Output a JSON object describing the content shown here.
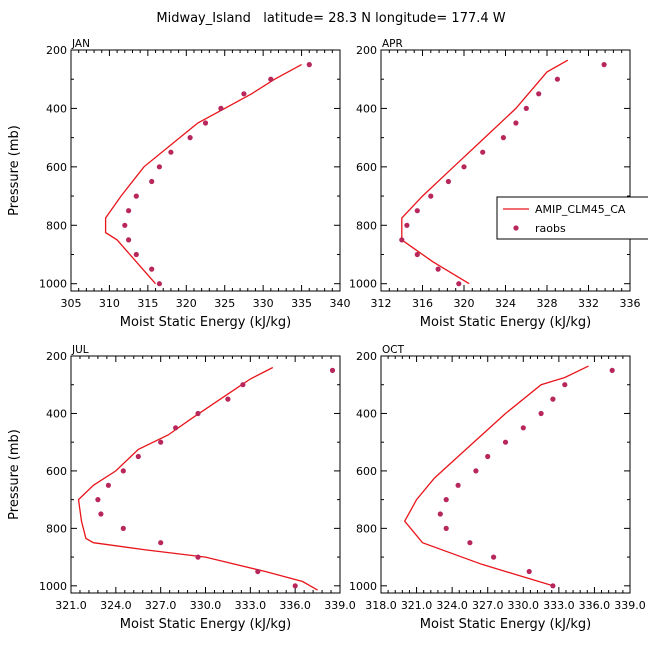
{
  "title": "Midway_Island   latitude= 28.3 N longitude= 177.4 W",
  "colors": {
    "model": "#e8151b",
    "obs": "#b8275c"
  },
  "legend": {
    "model_label": "AMIP_CLM45_CA",
    "obs_label": "raobs",
    "placement": "right of APR panel"
  },
  "chart_data": [
    {
      "type": "line",
      "panel": "JAN",
      "xlabel": "Moist Static Energy (kJ/kg)",
      "ylabel": "Pressure (mb)",
      "xlim": [
        305,
        340
      ],
      "ylim": [
        200,
        1025
      ],
      "y_inverted": true,
      "x_ticks": [
        "305",
        "310",
        "315",
        "320",
        "325",
        "330",
        "335",
        "340"
      ],
      "y_ticks": [
        "200",
        "400",
        "600",
        "800",
        "1000"
      ],
      "series": [
        {
          "name": "AMIP_CLM45_CA",
          "style": "line",
          "x": [
            316.0,
            313.5,
            311.0,
            309.5,
            309.5,
            311.5,
            314.5,
            318.0,
            321.5,
            325.0,
            328.5,
            331.5,
            335.0
          ],
          "y": [
            1000,
            925,
            850,
            825,
            775,
            700,
            600,
            525,
            450,
            400,
            350,
            300,
            250
          ]
        },
        {
          "name": "raobs",
          "style": "dots",
          "x": [
            316.5,
            315.5,
            313.5,
            312.5,
            312.0,
            312.5,
            313.5,
            315.5,
            316.5,
            318.0,
            320.5,
            322.5,
            324.5,
            327.5,
            331.0,
            336.0
          ],
          "y": [
            1000,
            950,
            900,
            850,
            800,
            750,
            700,
            650,
            600,
            550,
            500,
            450,
            400,
            350,
            300,
            250
          ]
        }
      ]
    },
    {
      "type": "line",
      "panel": "APR",
      "xlabel": "Moist Static Energy (kJ/kg)",
      "ylabel": "",
      "xlim": [
        312,
        336
      ],
      "ylim": [
        200,
        1025
      ],
      "y_inverted": true,
      "x_ticks": [
        "312",
        "316",
        "320",
        "324",
        "328",
        "332",
        "336"
      ],
      "y_ticks": [
        "200",
        "400",
        "600",
        "800",
        "1000"
      ],
      "series": [
        {
          "name": "AMIP_CLM45_CA",
          "style": "line",
          "x": [
            320.5,
            317.0,
            315.0,
            314.0,
            314.0,
            316.0,
            319.0,
            322.0,
            325.0,
            328.0,
            330.0
          ],
          "y": [
            1000,
            925,
            875,
            850,
            775,
            700,
            600,
            500,
            400,
            275,
            235
          ]
        },
        {
          "name": "raobs",
          "style": "dots",
          "x": [
            319.5,
            317.5,
            315.5,
            314.0,
            314.5,
            315.5,
            316.8,
            318.5,
            320.0,
            321.8,
            323.8,
            325.0,
            326.0,
            327.2,
            329.0,
            333.5
          ],
          "y": [
            1000,
            950,
            900,
            850,
            800,
            750,
            700,
            650,
            600,
            550,
            500,
            450,
            400,
            350,
            300,
            250
          ]
        }
      ]
    },
    {
      "type": "line",
      "panel": "JUL",
      "xlabel": "Moist Static Energy (kJ/kg)",
      "ylabel": "Pressure (mb)",
      "xlim": [
        321.0,
        339.0
      ],
      "ylim": [
        200,
        1025
      ],
      "y_inverted": true,
      "x_ticks": [
        "321.0",
        "324.0",
        "327.0",
        "330.0",
        "333.0",
        "336.0",
        "339.0"
      ],
      "y_ticks": [
        "200",
        "400",
        "600",
        "800",
        "1000"
      ],
      "series": [
        {
          "name": "AMIP_CLM45_CA",
          "style": "line",
          "x": [
            337.5,
            336.5,
            334.0,
            330.0,
            326.0,
            322.5,
            322.0,
            321.7,
            321.5,
            322.5,
            324.0,
            325.5,
            327.5,
            329.0,
            331.0,
            333.0,
            334.5
          ],
          "y": [
            1015,
            985,
            950,
            900,
            875,
            850,
            835,
            775,
            700,
            650,
            600,
            525,
            475,
            420,
            350,
            280,
            240
          ]
        },
        {
          "name": "raobs",
          "style": "dots",
          "x": [
            336.0,
            333.5,
            329.5,
            327.0,
            324.5,
            323.0,
            322.8,
            323.5,
            324.5,
            325.5,
            327.0,
            328.0,
            329.5,
            331.5,
            332.5,
            338.5
          ],
          "y": [
            1000,
            950,
            900,
            850,
            800,
            750,
            700,
            650,
            600,
            550,
            500,
            450,
            400,
            350,
            300,
            250
          ]
        }
      ]
    },
    {
      "type": "line",
      "panel": "OCT",
      "xlabel": "Moist Static Energy (kJ/kg)",
      "ylabel": "",
      "xlim": [
        318.0,
        339.0
      ],
      "ylim": [
        200,
        1025
      ],
      "y_inverted": true,
      "x_ticks": [
        "318.0",
        "321.0",
        "324.0",
        "327.0",
        "330.0",
        "333.0",
        "336.0",
        "339.0"
      ],
      "y_ticks": [
        "200",
        "400",
        "600",
        "800",
        "1000"
      ],
      "series": [
        {
          "name": "AMIP_CLM45_CA",
          "style": "line",
          "x": [
            332.5,
            326.5,
            321.5,
            320.0,
            321.0,
            322.5,
            324.5,
            326.5,
            328.5,
            331.5,
            333.5,
            335.5
          ],
          "y": [
            1000,
            925,
            850,
            775,
            700,
            625,
            550,
            475,
            400,
            300,
            275,
            235
          ]
        },
        {
          "name": "raobs",
          "style": "dots",
          "x": [
            332.5,
            330.5,
            327.5,
            325.5,
            323.5,
            323.0,
            323.5,
            324.5,
            326.0,
            327.0,
            328.5,
            330.0,
            331.5,
            332.5,
            333.5,
            337.5
          ],
          "y": [
            1000,
            950,
            900,
            850,
            800,
            750,
            700,
            650,
            600,
            550,
            500,
            450,
            400,
            350,
            300,
            250
          ]
        }
      ]
    }
  ]
}
